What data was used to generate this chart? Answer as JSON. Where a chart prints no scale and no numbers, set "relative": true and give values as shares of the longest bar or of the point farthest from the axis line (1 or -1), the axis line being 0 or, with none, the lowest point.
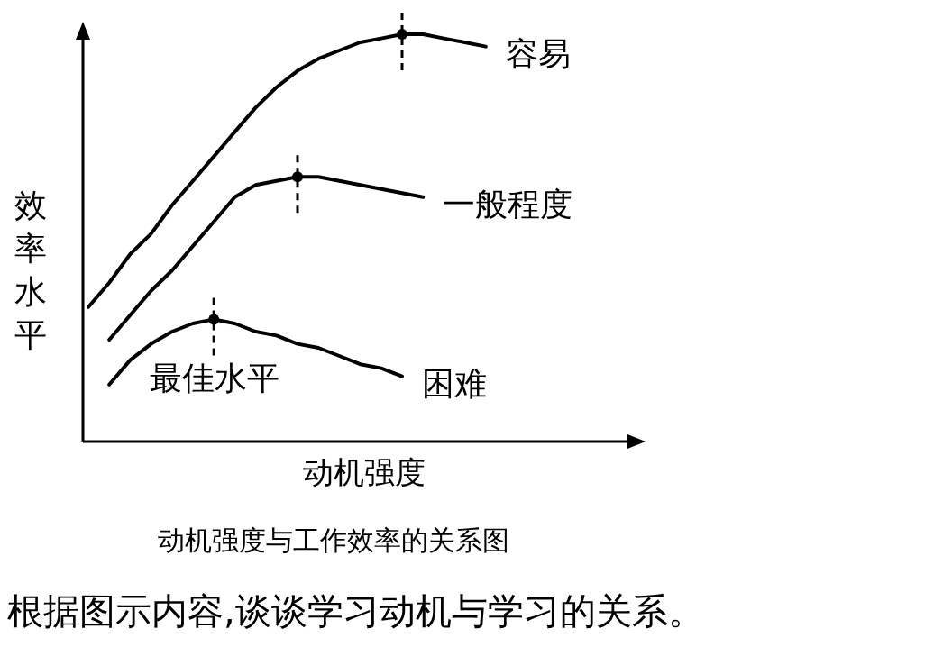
{
  "chart_data": {
    "type": "line",
    "relative": true,
    "xlabel": "动机强度",
    "ylabel": "效率水平",
    "categories": [
      null,
      null,
      null,
      null,
      null,
      null,
      null,
      null,
      null,
      null,
      null,
      null,
      null,
      null,
      null,
      null,
      null,
      null,
      null,
      null
    ],
    "line_style": "solid",
    "series": [
      {
        "name": "容易",
        "color": "#000000",
        "values": [
          0.33,
          0.39,
          0.46,
          0.51,
          0.58,
          0.64,
          0.7,
          0.76,
          0.82,
          0.87,
          0.91,
          0.94,
          0.96,
          0.98,
          0.99,
          1.0,
          1.0,
          0.99,
          0.98,
          0.97
        ]
      },
      {
        "name": "一般程度",
        "color": "#000000",
        "values": [
          null,
          0.25,
          0.31,
          0.37,
          0.42,
          0.48,
          0.54,
          0.6,
          0.63,
          0.64,
          0.65,
          0.65,
          0.64,
          0.63,
          0.62,
          0.61,
          0.6,
          null,
          null,
          null
        ]
      },
      {
        "name": "困难",
        "color": "#000000",
        "values": [
          null,
          0.14,
          0.2,
          0.24,
          0.27,
          0.29,
          0.3,
          0.29,
          0.27,
          0.26,
          0.24,
          0.23,
          0.21,
          0.19,
          0.18,
          0.16,
          null,
          null,
          null,
          null
        ]
      }
    ],
    "annotations": [
      "最佳水平",
      "动机强度与工作效率的关系图",
      "根据图示内容,谈谈学习动机与学习的关系。"
    ]
  }
}
